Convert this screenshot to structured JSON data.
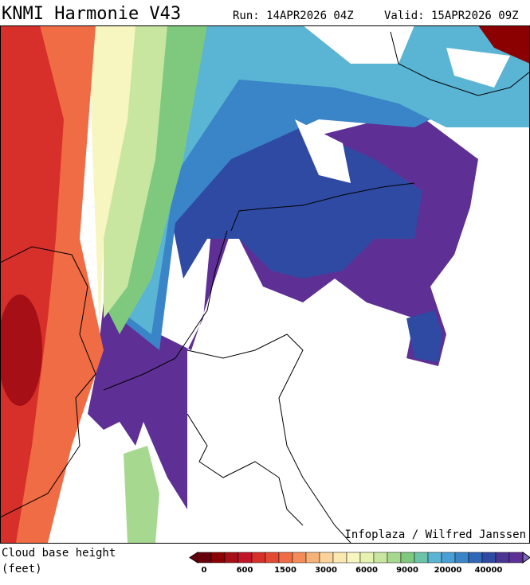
{
  "header": {
    "title": "KNMI Harmonie V43",
    "run": "Run: 14APR2026 04Z",
    "valid": "Valid: 15APR2026 09Z"
  },
  "map": {
    "credit": "Infoplaza / Wilfred Janssen"
  },
  "legend": {
    "title_lines": [
      "Cloud base height",
      "(feet)"
    ],
    "colors": [
      "#67000d",
      "#8b0000",
      "#a50f15",
      "#c0162a",
      "#d7302a",
      "#e34a33",
      "#ef6c45",
      "#f48c5a",
      "#f7b27a",
      "#fad39a",
      "#fbe8b0",
      "#f7f5c0",
      "#e6f2b0",
      "#c8e6a0",
      "#a6d98f",
      "#7fc97f",
      "#6cc3a8",
      "#5ab4d4",
      "#4a9fd6",
      "#3a84c8",
      "#3068b8",
      "#2f4aa3",
      "#4a3593",
      "#5e2f94"
    ],
    "labels": [
      "0",
      "600",
      "1500",
      "3000",
      "6000",
      "9000",
      "20000",
      "40000"
    ]
  }
}
